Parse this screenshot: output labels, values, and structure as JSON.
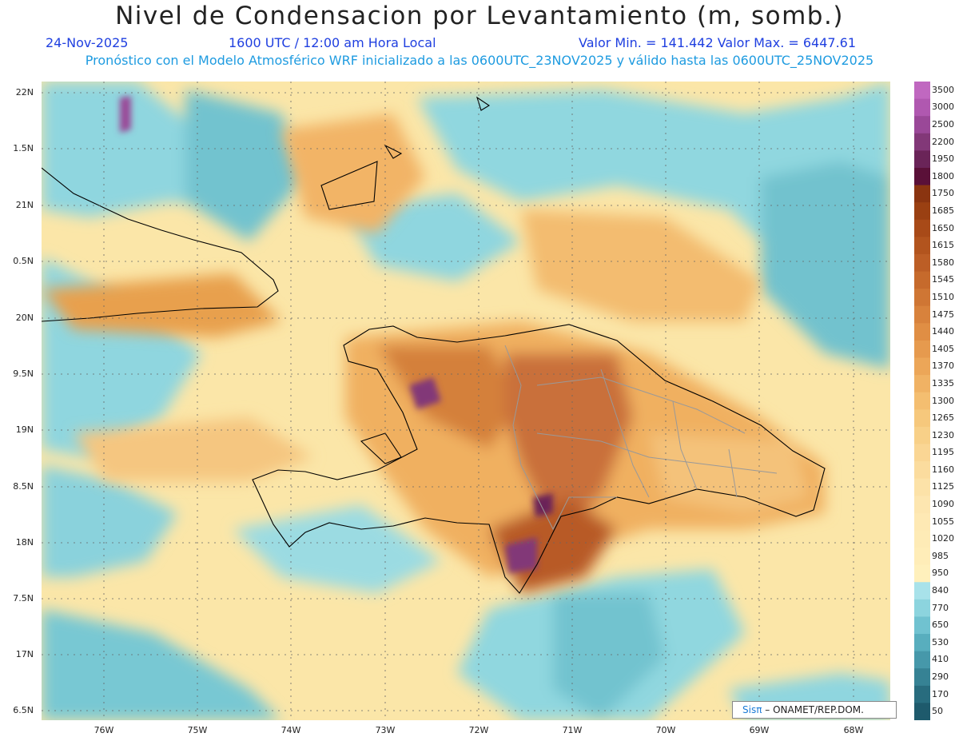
{
  "header": {
    "title": "Nivel de Condensacion por Levantamiento (m, somb.)",
    "date": "24-Nov-2025",
    "time": "1600 UTC / 12:00 am Hora Local",
    "min_max": "Valor Min. = 141.442  Valor Max. = 6447.61",
    "subtitle": "Pronóstico con el Modelo Atmosférico WRF inicializado a las 0600UTC_23NOV2025 y válido hasta las  0600UTC_25NOV2025"
  },
  "map": {
    "lon_labels": [
      "76W",
      "75W",
      "74W",
      "73W",
      "72W",
      "71W",
      "70W",
      "69W",
      "68W"
    ],
    "lat_labels": [
      "22N",
      "1.5N",
      "21N",
      "0.5N",
      "20N",
      "9.5N",
      "19N",
      "8.5N",
      "18N",
      "7.5N",
      "17N",
      "6.5N"
    ],
    "credit_brand": "Sisπ",
    "credit_text": "– ONAMET/REP.DOM."
  },
  "colorbar": {
    "levels": [
      "3500",
      "3000",
      "2500",
      "2200",
      "1950",
      "1800",
      "1750",
      "1685",
      "1650",
      "1615",
      "1580",
      "1545",
      "1510",
      "1475",
      "1440",
      "1405",
      "1370",
      "1335",
      "1300",
      "1265",
      "1230",
      "1195",
      "1160",
      "1125",
      "1090",
      "1055",
      "1020",
      "985",
      "950",
      "840",
      "770",
      "650",
      "530",
      "410",
      "290",
      "170",
      "50"
    ],
    "colors": [
      "#c068c0",
      "#b058b0",
      "#9a4898",
      "#823878",
      "#6a2458",
      "#5a1038",
      "#8a3410",
      "#9a4012",
      "#a84a18",
      "#b2541e",
      "#bc5e26",
      "#c66a2c",
      "#cf7634",
      "#d8823c",
      "#e08e44",
      "#e69a4e",
      "#eca658",
      "#f0b264",
      "#f4be70",
      "#f6c87c",
      "#f8d088",
      "#fad694",
      "#fbdc9e",
      "#fce2a8",
      "#fde6b0",
      "#fee9b4",
      "#feebb6",
      "#ffedb8",
      "#fff0bc",
      "#a8e2ea",
      "#8cd4de",
      "#70c2d0",
      "#58aebe",
      "#4698aa",
      "#368294",
      "#286c7e",
      "#1e5a6c"
    ]
  }
}
